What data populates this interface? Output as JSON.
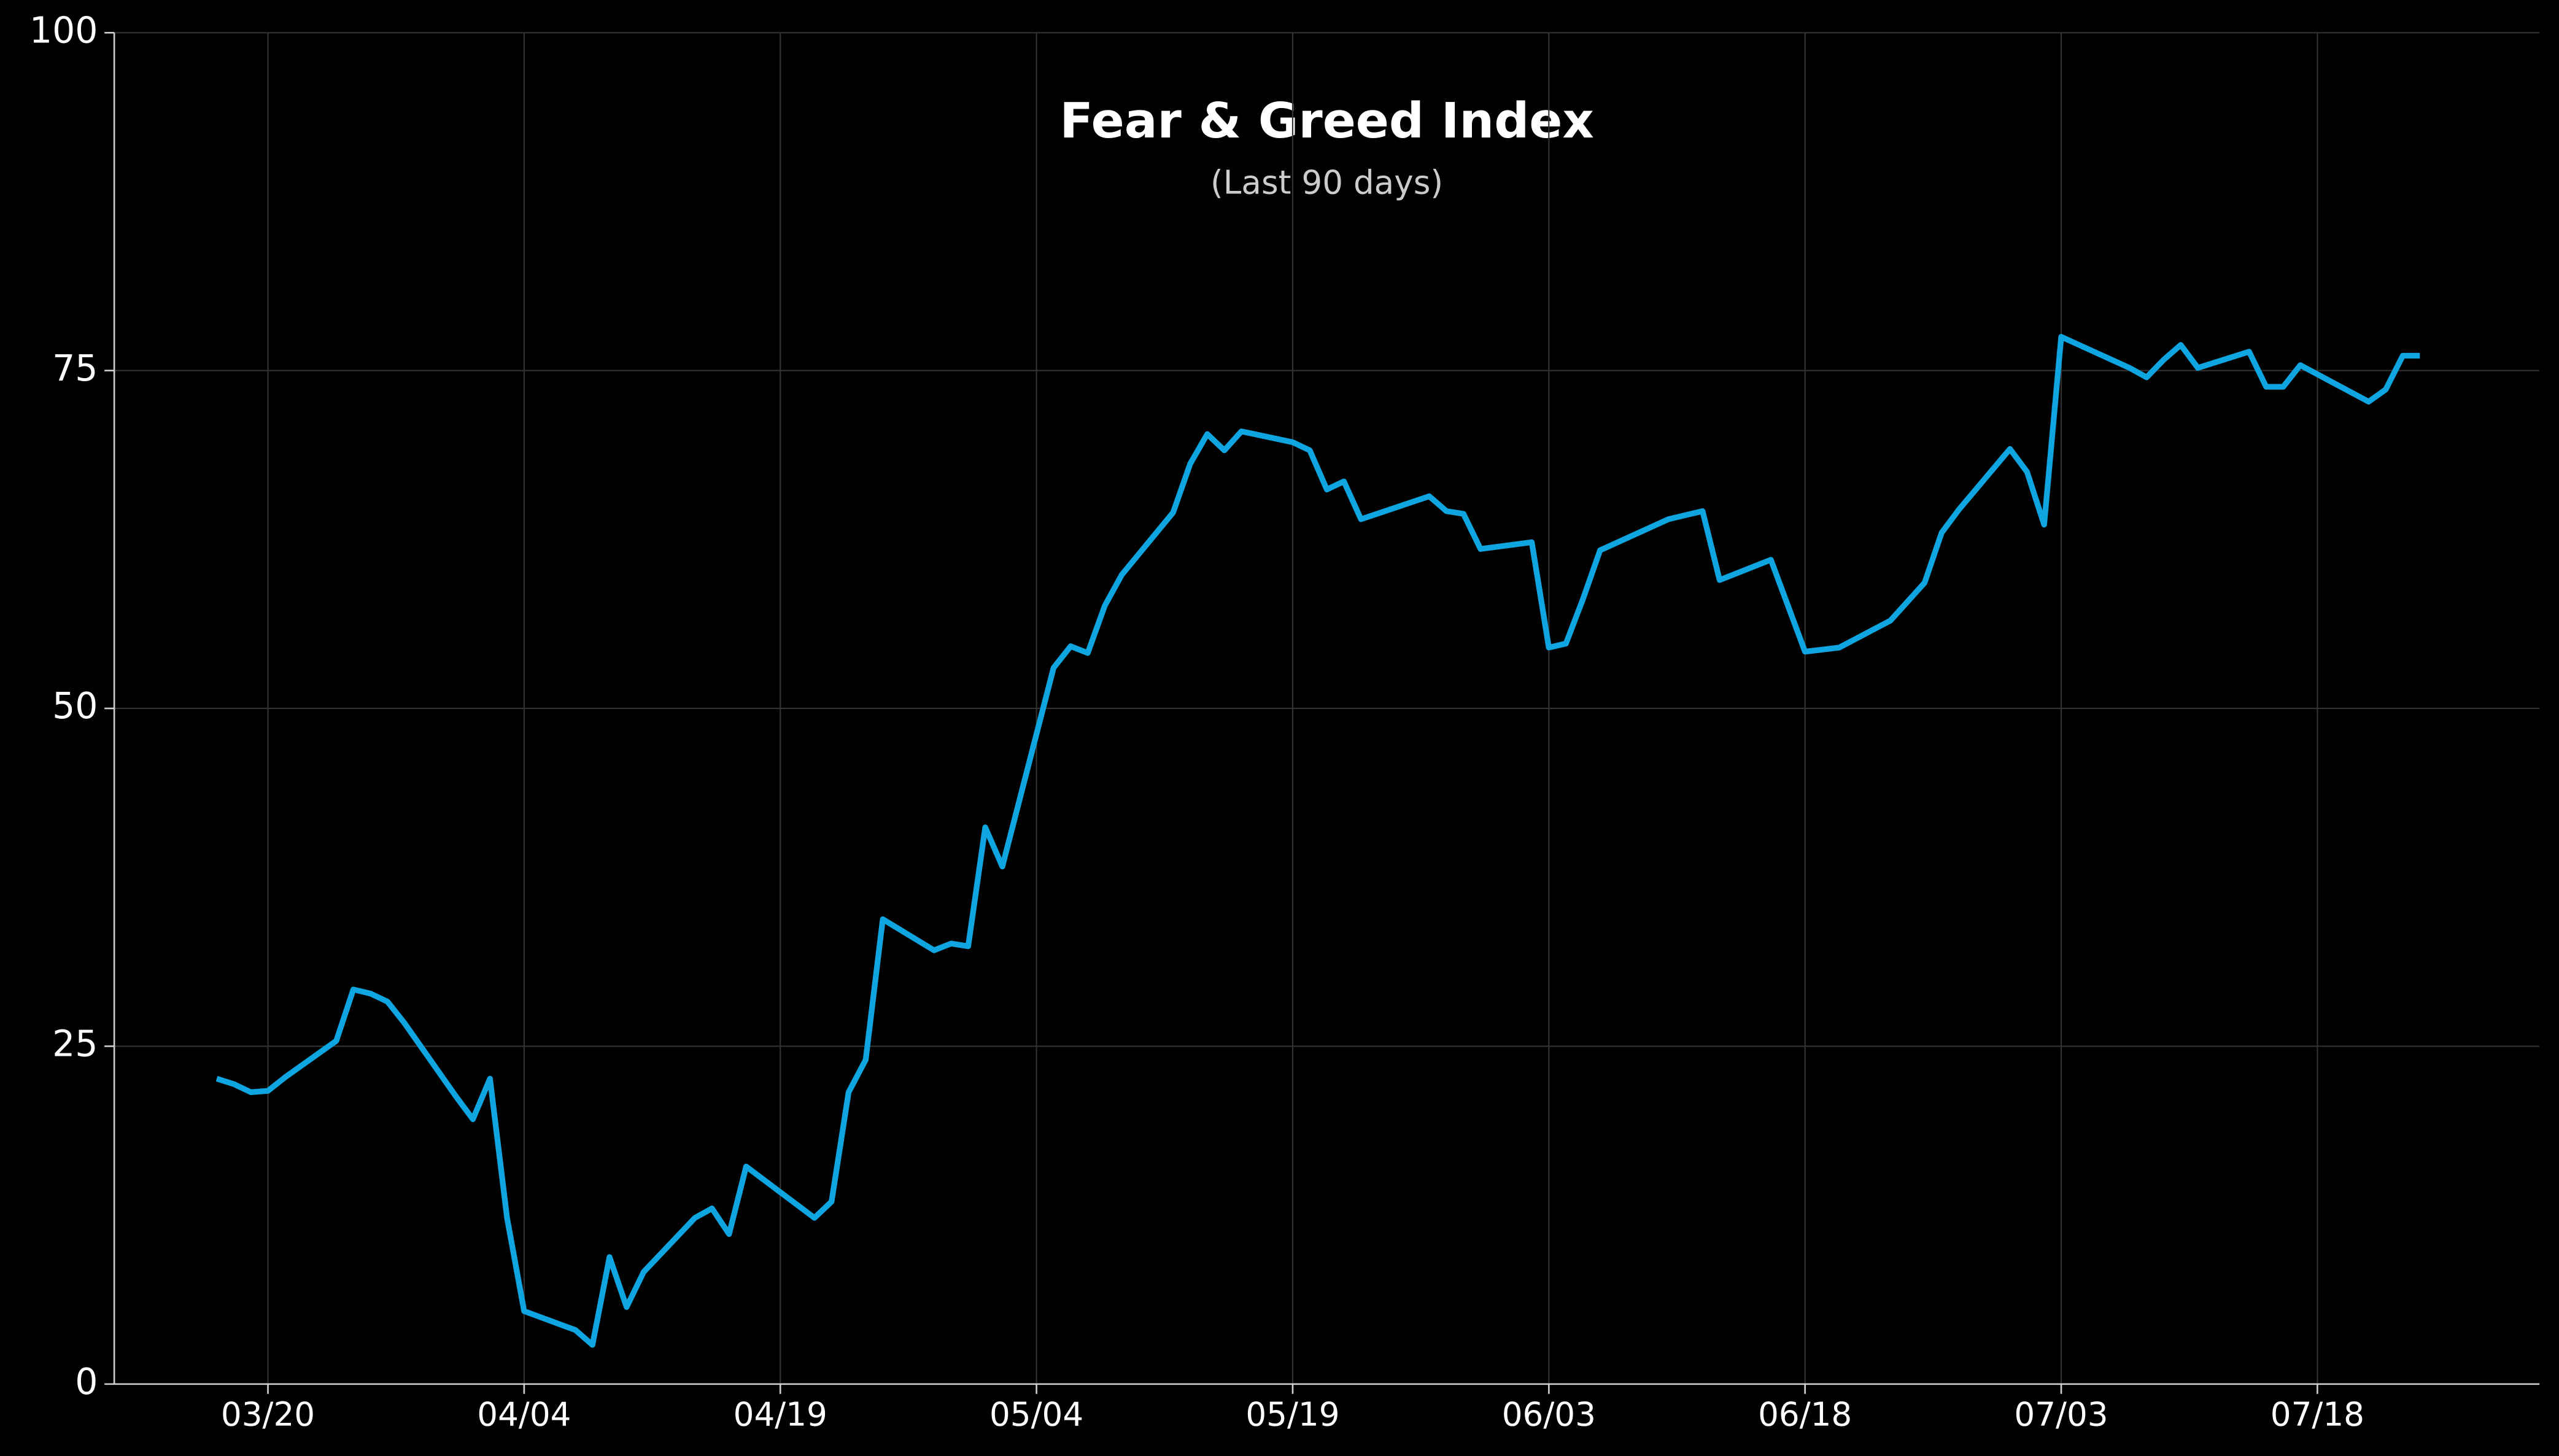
{
  "chart_data": {
    "type": "line",
    "title": "Fear & Greed Index",
    "subtitle": "(Last 90 days)",
    "x": [
      "03/17",
      "03/18",
      "03/19",
      "03/20",
      "03/21",
      "03/24",
      "03/25",
      "03/26",
      "03/27",
      "03/28",
      "03/31",
      "04/01",
      "04/02",
      "04/03",
      "04/04",
      "04/07",
      "04/08",
      "04/09",
      "04/10",
      "04/11",
      "04/14",
      "04/15",
      "04/16",
      "04/17",
      "04/21",
      "04/22",
      "04/23",
      "04/24",
      "04/25",
      "04/28",
      "04/29",
      "04/30",
      "05/01",
      "05/02",
      "05/05",
      "05/06",
      "05/07",
      "05/08",
      "05/09",
      "05/12",
      "05/13",
      "05/14",
      "05/15",
      "05/16",
      "05/19",
      "05/20",
      "05/21",
      "05/22",
      "05/23",
      "05/27",
      "05/28",
      "05/29",
      "05/30",
      "06/02",
      "06/03",
      "06/04",
      "06/05",
      "06/06",
      "06/10",
      "06/11",
      "06/12",
      "06/13",
      "06/16",
      "06/17",
      "06/18",
      "06/20",
      "06/23",
      "06/25",
      "06/26",
      "06/27",
      "06/30",
      "07/01",
      "07/02",
      "07/03",
      "07/07",
      "07/08",
      "07/09",
      "07/10",
      "07/11",
      "07/14",
      "07/15",
      "07/16",
      "07/17",
      "07/21",
      "07/22",
      "07/23",
      "07/24"
    ],
    "series": [
      {
        "name": "Fear & Greed",
        "color": "#0ea5e0",
        "values": [
          22.6,
          22.2,
          21.6,
          21.7,
          22.7,
          25.4,
          29.2,
          28.9,
          28.3,
          26.7,
          21.3,
          19.6,
          22.6,
          12.3,
          5.4,
          4.0,
          2.9,
          9.4,
          5.7,
          8.3,
          12.3,
          13.0,
          11.1,
          16.1,
          12.3,
          13.5,
          21.6,
          24.0,
          34.4,
          32.1,
          32.6,
          32.4,
          41.2,
          38.3,
          53.0,
          54.6,
          54.1,
          57.6,
          59.9,
          64.5,
          68.1,
          70.3,
          69.1,
          70.5,
          69.7,
          69.1,
          66.2,
          66.8,
          64.0,
          65.7,
          64.6,
          64.4,
          61.8,
          62.3,
          54.5,
          54.8,
          58.1,
          61.7,
          64.0,
          64.3,
          64.6,
          59.5,
          61.0,
          57.6,
          54.2,
          54.5,
          56.5,
          59.3,
          63.0,
          64.7,
          69.2,
          67.5,
          63.6,
          77.5,
          75.2,
          74.5,
          75.8,
          76.9,
          75.2,
          76.4,
          73.8,
          73.8,
          75.4,
          72.7,
          73.6,
          76.1,
          76.1
        ]
      }
    ],
    "xlim": [
      "03/11",
      "07/31"
    ],
    "xticks": [
      "03/20",
      "04/04",
      "04/19",
      "05/04",
      "05/19",
      "06/03",
      "06/18",
      "07/03",
      "07/18"
    ],
    "ylim": [
      0,
      100
    ],
    "yticks": [
      0,
      25,
      50,
      75,
      100
    ],
    "grid": true
  }
}
